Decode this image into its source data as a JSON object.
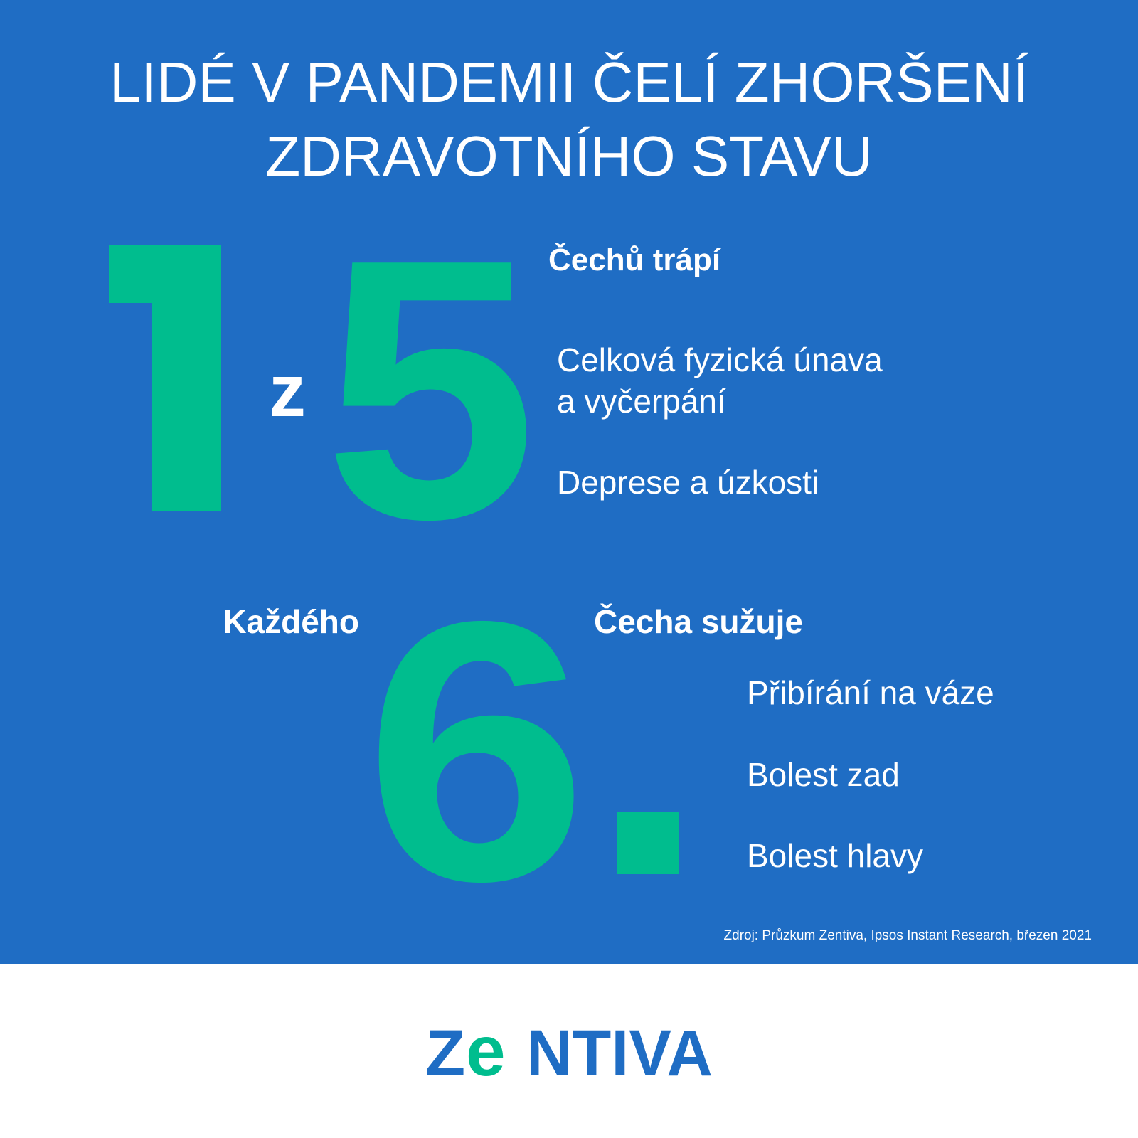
{
  "title": {
    "line1": "LIDÉ V PANDEMII ČELÍ ZHORŠENÍ",
    "line2": "ZDRAVOTNÍHO STAVU"
  },
  "stat1": {
    "numerator": "1",
    "connector": "z",
    "denominator": "5",
    "heading": "Čechů trápí",
    "items": [
      "Celková fyzická únava",
      "a vyčerpání",
      "Deprese a úzkosti"
    ]
  },
  "stat2": {
    "prefix": "Každého",
    "number": "6",
    "dot": ".",
    "heading": "Čecha sužuje",
    "items": [
      "Přibírání na váze",
      "Bolest zad",
      "Bolest hlavy"
    ]
  },
  "source": "Zdroj: Průzkum Zentiva, Ipsos Instant Research, březen 2021",
  "logo": {
    "text": "ZENTIVA",
    "parts": [
      "Z",
      "e",
      "NTIVA"
    ]
  },
  "colors": {
    "background": "#1f6dc4",
    "accent": "#00bd8e",
    "text": "#ffffff",
    "logo_blue": "#1f6dc4"
  }
}
